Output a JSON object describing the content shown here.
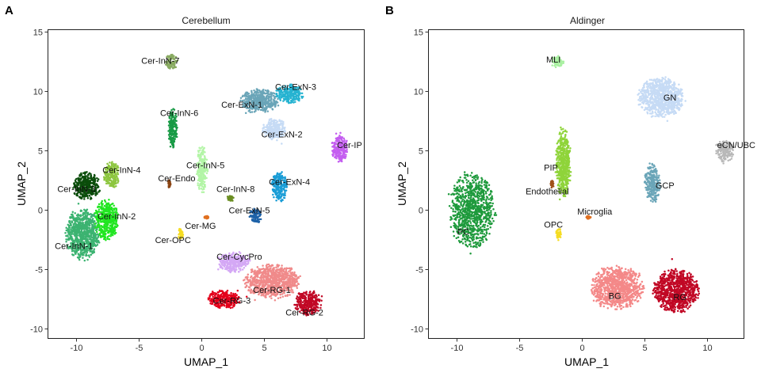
{
  "figure": {
    "panels": [
      {
        "letter": "A",
        "title": "Cerebellum",
        "xlabel": "UMAP_1",
        "ylabel": "UMAP_2",
        "x_ticks": [
          "-10",
          "-5",
          "0",
          "5",
          "10"
        ],
        "y_ticks": [
          "15",
          "10",
          "5",
          "0",
          "-5",
          "-10"
        ]
      },
      {
        "letter": "B",
        "title": "Aldinger",
        "xlabel": "UMAP_1",
        "ylabel": "UMAP_2",
        "x_ticks": [
          "-10",
          "-5",
          "0",
          "5",
          "10"
        ],
        "y_ticks": [
          "15",
          "10",
          "5",
          "0",
          "-5",
          "-10"
        ]
      }
    ]
  },
  "chart_data": [
    {
      "type": "scatter",
      "title": "Cerebellum",
      "xlabel": "UMAP_1",
      "ylabel": "UMAP_2",
      "xlim": [
        -12.5,
        13
      ],
      "ylim": [
        -10.8,
        15.2
      ],
      "x_ticks": [
        -10,
        -5,
        0,
        5,
        10
      ],
      "y_ticks": [
        15,
        10,
        5,
        0,
        -5,
        -10
      ],
      "grid": false,
      "legend": "none (clusters labeled directly)",
      "clusters": [
        {
          "name": "Cer-InN-1",
          "color": "#3cb371",
          "center": [
            -9.5,
            -2.0
          ],
          "label_at": [
            -10.2,
            -3.0
          ]
        },
        {
          "name": "Cer-InN-2",
          "color": "#22e622",
          "center": [
            -7.6,
            -0.8
          ],
          "label_at": [
            -6.8,
            -0.5
          ]
        },
        {
          "name": "Cer-InN-3",
          "color": "#0b4d0b",
          "center": [
            -9.2,
            2.0
          ],
          "label_at": [
            -10.0,
            1.8
          ]
        },
        {
          "name": "Cer-InN-4",
          "color": "#8dc63f",
          "center": [
            -7.2,
            3.0
          ],
          "label_at": [
            -6.4,
            3.4
          ]
        },
        {
          "name": "Cer-InN-5",
          "color": "#b3f5a6",
          "center": [
            0.0,
            3.5
          ],
          "label_at": [
            0.3,
            3.8
          ]
        },
        {
          "name": "Cer-InN-6",
          "color": "#189a45",
          "center": [
            -2.3,
            6.8
          ],
          "label_at": [
            -1.8,
            8.2
          ]
        },
        {
          "name": "Cer-InN-7",
          "color": "#88aa60",
          "center": [
            -2.4,
            12.5
          ],
          "label_at": [
            -3.3,
            12.6
          ]
        },
        {
          "name": "Cer-InN-8",
          "color": "#6b8e23",
          "center": [
            2.3,
            1.0
          ],
          "label_at": [
            2.7,
            1.8
          ]
        },
        {
          "name": "Cer-Endo",
          "color": "#8b4513",
          "center": [
            -2.6,
            2.2
          ],
          "label_at": [
            -2.0,
            2.7
          ]
        },
        {
          "name": "Cer-MG",
          "color": "#e07020",
          "center": [
            0.4,
            -0.6
          ],
          "label_at": [
            -0.1,
            -1.3
          ]
        },
        {
          "name": "Cer-OPC",
          "color": "#f5dc22",
          "center": [
            -1.7,
            -2.0
          ],
          "label_at": [
            -2.3,
            -2.5
          ]
        },
        {
          "name": "Cer-ExN-1",
          "color": "#6aa5b8",
          "center": [
            4.6,
            9.2
          ],
          "label_at": [
            3.2,
            8.9
          ]
        },
        {
          "name": "Cer-ExN-2",
          "color": "#c6dbf5",
          "center": [
            5.8,
            6.8
          ],
          "label_at": [
            6.4,
            6.4
          ]
        },
        {
          "name": "Cer-ExN-3",
          "color": "#26b3d1",
          "center": [
            7.0,
            9.8
          ],
          "label_at": [
            7.5,
            10.4
          ]
        },
        {
          "name": "Cer-ExN-4",
          "color": "#1a9dd6",
          "center": [
            6.2,
            2.0
          ],
          "label_at": [
            7.0,
            2.4
          ]
        },
        {
          "name": "Cer-ExN-5",
          "color": "#1e62a8",
          "center": [
            4.3,
            -0.5
          ],
          "label_at": [
            3.8,
            0.0
          ]
        },
        {
          "name": "Cer-IP",
          "color": "#c45ef0",
          "center": [
            11.0,
            5.3
          ],
          "label_at": [
            11.8,
            5.5
          ]
        },
        {
          "name": "Cer-CycPro",
          "color": "#d4a8f5",
          "center": [
            2.6,
            -4.4
          ],
          "label_at": [
            3.0,
            -3.9
          ]
        },
        {
          "name": "Cer-RG-1",
          "color": "#f08a8a",
          "center": [
            5.6,
            -6.0
          ],
          "label_at": [
            5.6,
            -6.7
          ]
        },
        {
          "name": "Cer-RG-2",
          "color": "#c10825",
          "center": [
            8.5,
            -7.8
          ],
          "label_at": [
            8.2,
            -8.6
          ]
        },
        {
          "name": "Cer-RG-3",
          "color": "#e3001b",
          "center": [
            1.8,
            -7.5
          ],
          "label_at": [
            2.4,
            -7.6
          ]
        }
      ]
    },
    {
      "type": "scatter",
      "title": "Aldinger",
      "xlabel": "UMAP_1",
      "ylabel": "UMAP_2",
      "xlim": [
        -12.5,
        13
      ],
      "ylim": [
        -10.8,
        15.2
      ],
      "x_ticks": [
        -10,
        -5,
        0,
        5,
        10
      ],
      "y_ticks": [
        15,
        10,
        5,
        0,
        -5,
        -10
      ],
      "grid": false,
      "legend": "none (clusters labeled directly)",
      "clusters": [
        {
          "name": "PC",
          "color": "#1e9a3c",
          "center": [
            -8.8,
            0.0
          ],
          "label_at": [
            -9.5,
            -1.8
          ]
        },
        {
          "name": "PIP",
          "color": "#8fd43a",
          "center": [
            -1.5,
            4.0
          ],
          "label_at": [
            -2.5,
            3.6
          ]
        },
        {
          "name": "MLI",
          "color": "#a8f0a0",
          "center": [
            -2.0,
            12.5
          ],
          "label_at": [
            -2.3,
            12.7
          ]
        },
        {
          "name": "Endothelial",
          "color": "#a0521a",
          "center": [
            -2.4,
            2.2
          ],
          "label_at": [
            -2.8,
            1.6
          ]
        },
        {
          "name": "Microglia",
          "color": "#e07020",
          "center": [
            0.5,
            -0.6
          ],
          "label_at": [
            1.0,
            -0.1
          ]
        },
        {
          "name": "OPC",
          "color": "#f5dc22",
          "center": [
            -1.9,
            -2.0
          ],
          "label_at": [
            -2.3,
            -1.2
          ]
        },
        {
          "name": "GN",
          "color": "#c6dbf5",
          "center": [
            6.3,
            9.5
          ],
          "label_at": [
            7.0,
            9.5
          ]
        },
        {
          "name": "GCP",
          "color": "#6aa5b8",
          "center": [
            5.6,
            2.3
          ],
          "label_at": [
            6.6,
            2.1
          ]
        },
        {
          "name": "eCN/UBC",
          "color": "#b8b8b8",
          "center": [
            11.4,
            5.0
          ],
          "label_at": [
            12.3,
            5.5
          ]
        },
        {
          "name": "BG",
          "color": "#f48888",
          "center": [
            2.8,
            -6.5
          ],
          "label_at": [
            2.6,
            -7.2
          ]
        },
        {
          "name": "RG",
          "color": "#c10825",
          "center": [
            7.5,
            -6.8
          ],
          "label_at": [
            7.8,
            -7.3
          ]
        }
      ]
    }
  ]
}
